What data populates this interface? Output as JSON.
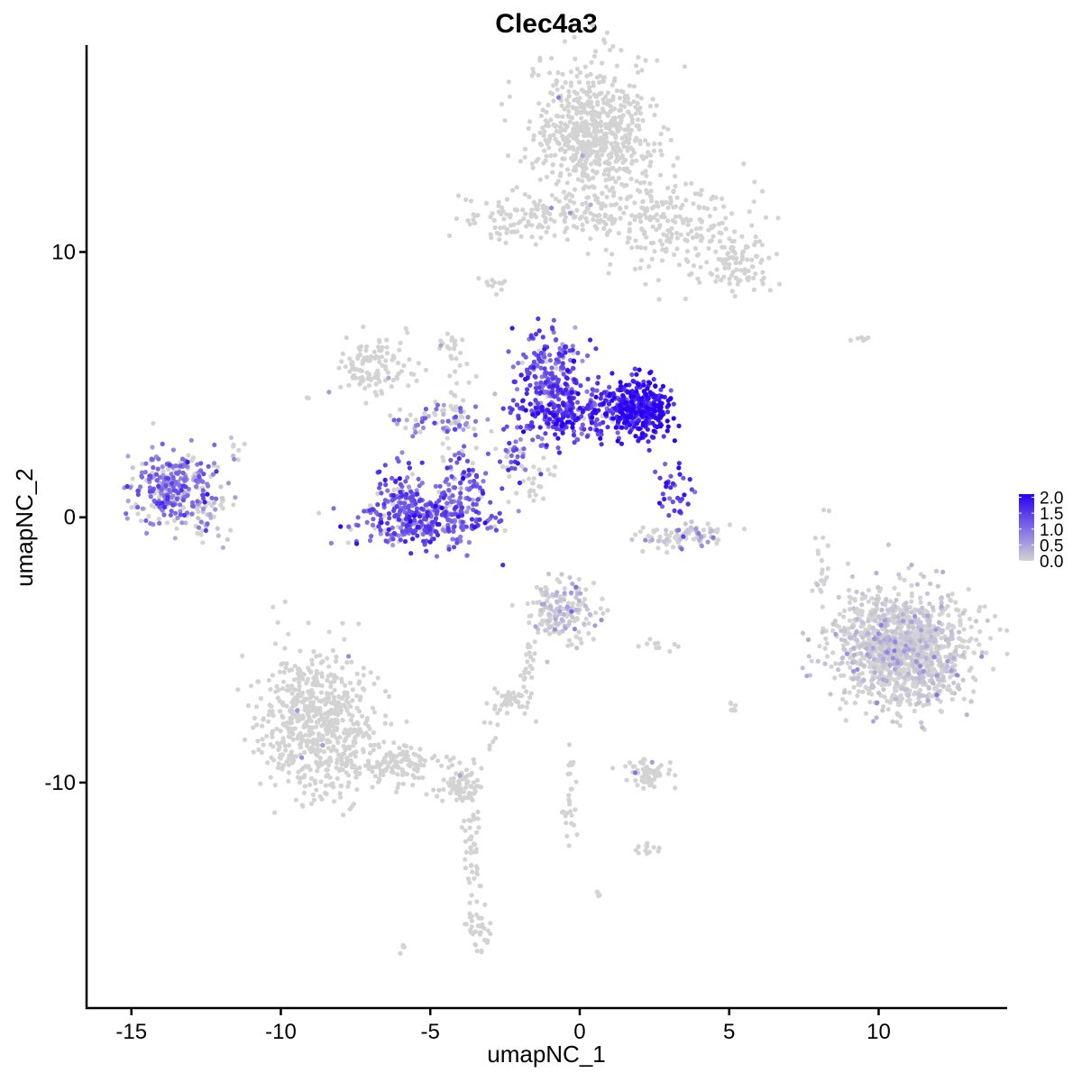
{
  "chart_data": {
    "type": "scatter",
    "title": "Clec4a3",
    "xlabel": "umapNC_1",
    "ylabel": "umapNC_2",
    "xlim": [
      -16.5,
      14.3
    ],
    "ylim": [
      -18.5,
      17.8
    ],
    "x_ticks": [
      -15,
      -10,
      -5,
      0,
      5,
      10
    ],
    "x_tick_labels": [
      "-15",
      "-10",
      "-5",
      "0",
      "5",
      "10"
    ],
    "y_ticks": [
      -10,
      0,
      10
    ],
    "y_tick_labels": [
      "-10",
      "0",
      "10"
    ],
    "grid": false,
    "legend_position": "right",
    "color_scale": {
      "low_color": "#d3d3d3",
      "high_color": "#2a00f5",
      "min": 0.0,
      "max": 2.1,
      "breaks": [
        0.0,
        0.5,
        1.0,
        1.5,
        2.0
      ],
      "break_labels": [
        "0.0",
        "0.5",
        "1.0",
        "1.5",
        "2.0"
      ]
    },
    "point_color_unexpressed": "#d3d3d3",
    "clusters": [
      {
        "cx": 0.5,
        "cy": 14.5,
        "sx": 1.0,
        "sy": 1.3,
        "n": 650,
        "expr": 0.0
      },
      {
        "cx": 3.2,
        "cy": 11.0,
        "sx": 1.4,
        "sy": 1.0,
        "n": 220,
        "expr": 0.0
      },
      {
        "cx": 5.2,
        "cy": 9.6,
        "sx": 0.7,
        "sy": 0.6,
        "n": 90,
        "expr": 0.0
      },
      {
        "cx": -1.8,
        "cy": 11.4,
        "sx": 1.1,
        "sy": 0.45,
        "n": 110,
        "expr": 0.0
      },
      {
        "cx": 0.6,
        "cy": 11.4,
        "sx": 0.9,
        "sy": 0.35,
        "n": 45,
        "expr": 0.0
      },
      {
        "cx": -2.8,
        "cy": 8.8,
        "sx": 0.25,
        "sy": 0.2,
        "n": 12,
        "expr": 0.0
      },
      {
        "cx": -7.0,
        "cy": 5.6,
        "sx": 0.7,
        "sy": 0.6,
        "n": 120,
        "expr": 0.0
      },
      {
        "cx": -4.3,
        "cy": 6.5,
        "sx": 0.25,
        "sy": 0.3,
        "n": 18,
        "expr": 0.0
      },
      {
        "cx": -4.1,
        "cy": 4.2,
        "sx": 0.35,
        "sy": 1.3,
        "n": 30,
        "expr": 0.0
      },
      {
        "cx": -13.6,
        "cy": 1.1,
        "sx": 0.75,
        "sy": 0.65,
        "n": 300,
        "expr": 0.95
      },
      {
        "cx": -12.4,
        "cy": 0.2,
        "sx": 0.4,
        "sy": 0.5,
        "n": 40,
        "expr": 0.2
      },
      {
        "cx": -11.6,
        "cy": 2.5,
        "sx": 0.2,
        "sy": 0.25,
        "n": 8,
        "expr": 0.6
      },
      {
        "cx": -5.2,
        "cy": -0.1,
        "sx": 1.1,
        "sy": 0.55,
        "n": 340,
        "expr": 1.25
      },
      {
        "cx": -6.0,
        "cy": 0.9,
        "sx": 0.35,
        "sy": 0.6,
        "n": 70,
        "expr": 1.2
      },
      {
        "cx": -3.9,
        "cy": 1.2,
        "sx": 0.35,
        "sy": 0.6,
        "n": 70,
        "expr": 1.1
      },
      {
        "cx": -4.7,
        "cy": 3.6,
        "sx": 0.8,
        "sy": 0.35,
        "n": 60,
        "expr": 0.9
      },
      {
        "cx": -2.2,
        "cy": 2.3,
        "sx": 0.45,
        "sy": 0.6,
        "n": 45,
        "expr": 1.2
      },
      {
        "cx": -1.0,
        "cy": 5.4,
        "sx": 0.55,
        "sy": 0.8,
        "n": 200,
        "expr": 1.3
      },
      {
        "cx": -0.5,
        "cy": 3.9,
        "sx": 0.9,
        "sy": 0.55,
        "n": 180,
        "expr": 1.55
      },
      {
        "cx": 0.8,
        "cy": 4.1,
        "sx": 0.7,
        "sy": 0.45,
        "n": 80,
        "expr": 1.6
      },
      {
        "cx": 2.0,
        "cy": 4.1,
        "sx": 0.55,
        "sy": 0.55,
        "n": 320,
        "expr": 1.85
      },
      {
        "cx": 3.2,
        "cy": 0.9,
        "sx": 0.25,
        "sy": 0.45,
        "n": 35,
        "expr": 1.45
      },
      {
        "cx": 3.5,
        "cy": -0.7,
        "sx": 0.8,
        "sy": 0.25,
        "n": 90,
        "expr": 0.3
      },
      {
        "cx": -1.6,
        "cy": 1.3,
        "sx": 0.35,
        "sy": 0.45,
        "n": 25,
        "expr": 0.0
      },
      {
        "cx": 10.8,
        "cy": -5.0,
        "sx": 1.1,
        "sy": 1.05,
        "n": 1300,
        "expr": 0.04
      },
      {
        "cx": 8.1,
        "cy": -1.5,
        "sx": 0.15,
        "sy": 0.9,
        "n": 22,
        "expr": 0.0
      },
      {
        "cx": 9.3,
        "cy": 6.7,
        "sx": 0.2,
        "sy": 0.08,
        "n": 6,
        "expr": 0.0
      },
      {
        "cx": -0.6,
        "cy": -3.6,
        "sx": 0.55,
        "sy": 0.6,
        "n": 170,
        "expr": 0.12
      },
      {
        "cx": -1.7,
        "cy": -5.9,
        "sx": 0.15,
        "sy": 0.8,
        "n": 28,
        "expr": 0.0
      },
      {
        "cx": -2.4,
        "cy": -6.9,
        "sx": 0.35,
        "sy": 0.2,
        "n": 35,
        "expr": 0.0
      },
      {
        "cx": -8.7,
        "cy": -7.8,
        "sx": 0.95,
        "sy": 1.35,
        "n": 650,
        "expr": 0.0
      },
      {
        "cx": -6.0,
        "cy": -9.3,
        "sx": 0.9,
        "sy": 0.4,
        "n": 130,
        "expr": 0.0
      },
      {
        "cx": -4.1,
        "cy": -10.2,
        "sx": 0.35,
        "sy": 0.3,
        "n": 60,
        "expr": 0.0
      },
      {
        "cx": -3.6,
        "cy": -12.3,
        "sx": 0.15,
        "sy": 1.5,
        "n": 55,
        "expr": 0.0
      },
      {
        "cx": -3.4,
        "cy": -15.6,
        "sx": 0.2,
        "sy": 0.4,
        "n": 30,
        "expr": 0.0
      },
      {
        "cx": 2.3,
        "cy": -9.6,
        "sx": 0.45,
        "sy": 0.25,
        "n": 60,
        "expr": 0.0
      },
      {
        "cx": 2.3,
        "cy": -12.5,
        "sx": 0.2,
        "sy": 0.15,
        "n": 14,
        "expr": 0.0
      },
      {
        "cx": -0.3,
        "cy": -10.8,
        "sx": 0.12,
        "sy": 0.9,
        "n": 28,
        "expr": 0.0
      },
      {
        "cx": 5.1,
        "cy": -7.2,
        "sx": 0.08,
        "sy": 0.25,
        "n": 8,
        "expr": 0.0
      },
      {
        "cx": 2.7,
        "cy": -4.9,
        "sx": 0.3,
        "sy": 0.08,
        "n": 10,
        "expr": 0.0
      },
      {
        "cx": 0.6,
        "cy": -14.2,
        "sx": 0.08,
        "sy": 0.08,
        "n": 4,
        "expr": 0.0
      },
      {
        "cx": -6.0,
        "cy": -16.2,
        "sx": 0.08,
        "sy": 0.08,
        "n": 4,
        "expr": 0.0
      },
      {
        "cx": -2.8,
        "cy": -8.0,
        "sx": 0.15,
        "sy": 0.5,
        "n": 8,
        "expr": 0.0
      }
    ]
  }
}
